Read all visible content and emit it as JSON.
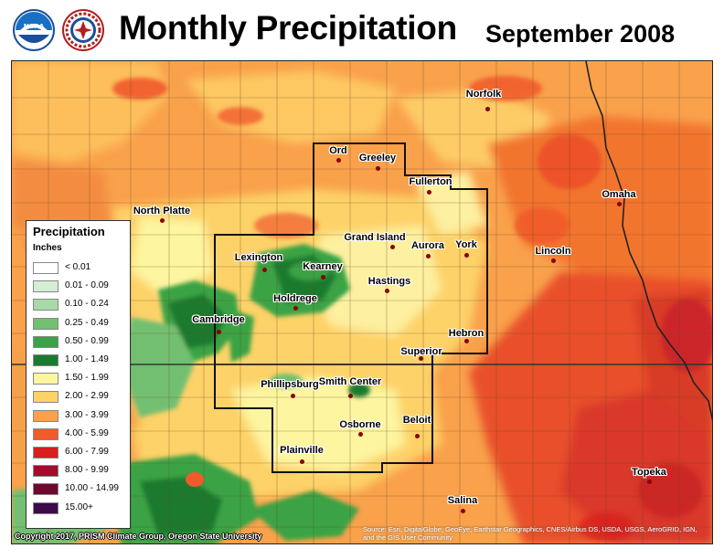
{
  "header": {
    "title": "Monthly Precipitation",
    "date": "September 2008",
    "logos": [
      "noaa-logo",
      "national-weather-service-logo"
    ]
  },
  "legend": {
    "title": "Precipitation",
    "units": "Inches",
    "items": [
      {
        "label": "< 0.01",
        "color": "#ffffff"
      },
      {
        "label": "0.01 - 0.09",
        "color": "#d4eed3"
      },
      {
        "label": "0.10 - 0.24",
        "color": "#a9d9a6"
      },
      {
        "label": "0.25 - 0.49",
        "color": "#73bf71"
      },
      {
        "label": "0.50 - 0.99",
        "color": "#3aa345"
      },
      {
        "label": "1.00 - 1.49",
        "color": "#1a7a2e"
      },
      {
        "label": "1.50 - 1.99",
        "color": "#fdf5a0"
      },
      {
        "label": "2.00 - 2.99",
        "color": "#fdd267"
      },
      {
        "label": "3.00 - 3.99",
        "color": "#f9a14b"
      },
      {
        "label": "4.00 - 5.99",
        "color": "#f05a2c"
      },
      {
        "label": "6.00 - 7.99",
        "color": "#d81e1e"
      },
      {
        "label": "8.00 - 9.99",
        "color": "#a50b2a"
      },
      {
        "label": "10.00 - 14.99",
        "color": "#6b0a2e"
      },
      {
        "label": "15.00+",
        "color": "#3d0a4a"
      }
    ]
  },
  "cities": [
    {
      "name": "Norfolk"
    },
    {
      "name": "Ord"
    },
    {
      "name": "Greeley"
    },
    {
      "name": "Fullerton"
    },
    {
      "name": "North Platte"
    },
    {
      "name": "Omaha"
    },
    {
      "name": "Grand Island"
    },
    {
      "name": "Aurora"
    },
    {
      "name": "York"
    },
    {
      "name": "Lincoln"
    },
    {
      "name": "Lexington"
    },
    {
      "name": "Kearney"
    },
    {
      "name": "Hastings"
    },
    {
      "name": "Holdrege"
    },
    {
      "name": "Cambridge"
    },
    {
      "name": "Hebron"
    },
    {
      "name": "Superior"
    },
    {
      "name": "Phillipsburg"
    },
    {
      "name": "Smith Center"
    },
    {
      "name": "Beloit"
    },
    {
      "name": "Osborne"
    },
    {
      "name": "Plainville"
    },
    {
      "name": "Topeka"
    },
    {
      "name": "Salina"
    }
  ],
  "credits": {
    "copyright": "Copyright 2017, PRISM Climate Group, Oregon State University",
    "source": "Source: Esri, DigitalGlobe, GeoEye, Earthstar Geographics, CNES/Airbus DS, USDA, USGS, AeroGRID, IGN, and the GIS User Community"
  }
}
